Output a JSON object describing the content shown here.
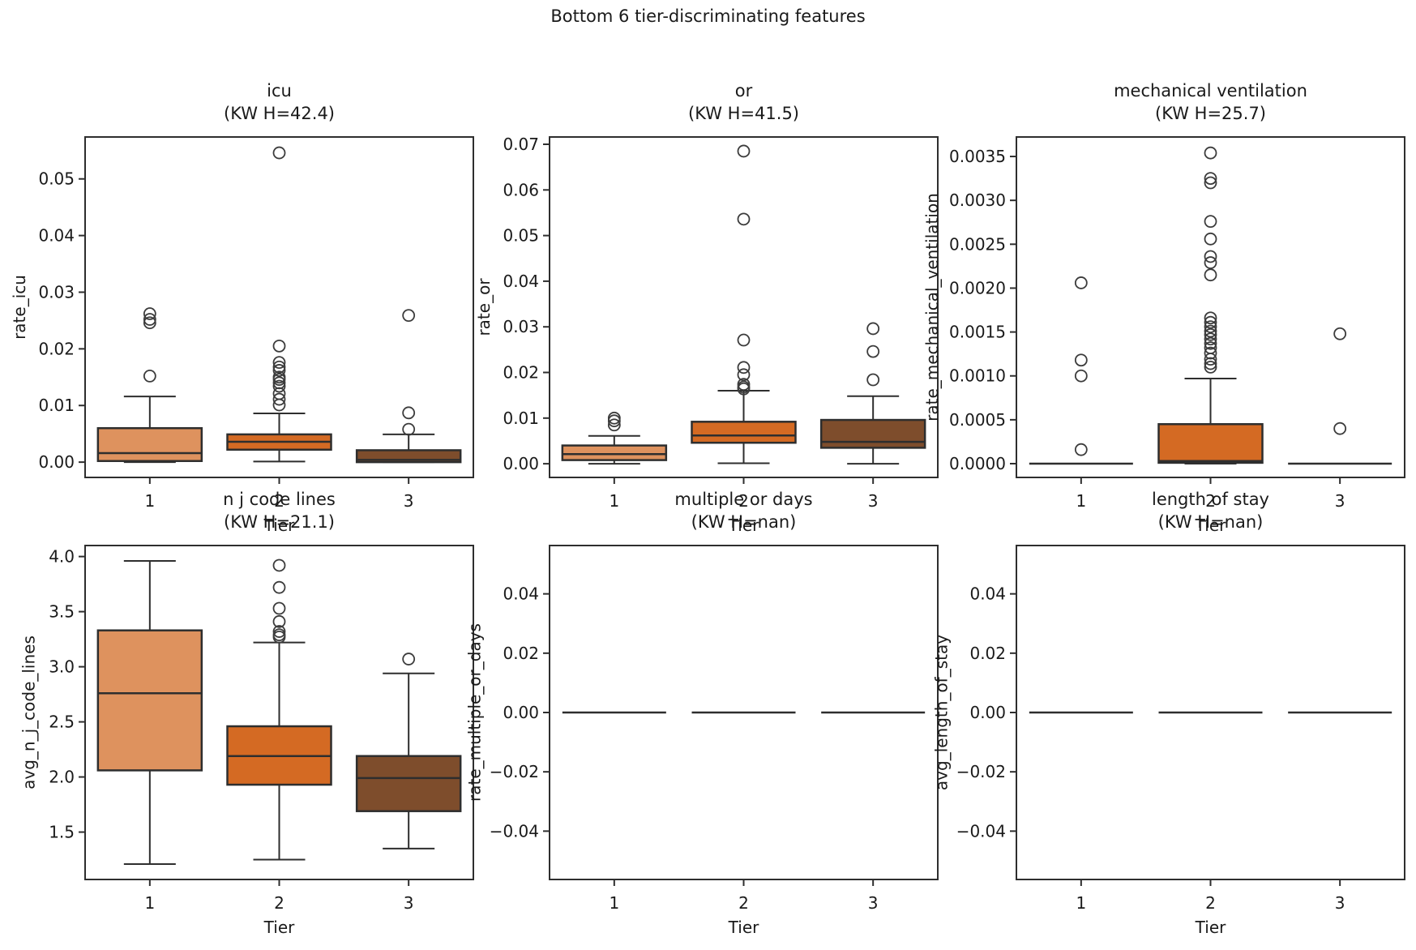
{
  "suptitle": "Bottom 6 tier-discriminating features",
  "colors": {
    "tier1_fill": "#de925e",
    "tier2_fill": "#d46a23",
    "tier3_fill": "#7e4d2c",
    "line": "#2e2e2e",
    "text": "#1a1a1a",
    "background": "#ffffff"
  },
  "chart_data": [
    {
      "type": "box",
      "title": "icu",
      "subtitle": "(KW H=42.4)",
      "ylabel": "rate_icu",
      "xlabel": "Tier",
      "categories": [
        "1",
        "2",
        "3"
      ],
      "ylim": [
        -0.0027,
        0.0574
      ],
      "yticks": [
        {
          "v": 0.0,
          "label": "0.00"
        },
        {
          "v": 0.01,
          "label": "0.01"
        },
        {
          "v": 0.02,
          "label": "0.02"
        },
        {
          "v": 0.03,
          "label": "0.03"
        },
        {
          "v": 0.04,
          "label": "0.04"
        },
        {
          "v": 0.05,
          "label": "0.05"
        }
      ],
      "boxes": [
        {
          "tier": "1",
          "whisker_low": 0.0,
          "q1": 0.0002,
          "median": 0.0016,
          "q3": 0.006,
          "whisker_high": 0.0116,
          "outliers": [
            0.0152,
            0.0246,
            0.0252,
            0.0262
          ]
        },
        {
          "tier": "2",
          "whisker_low": 0.0001,
          "q1": 0.0022,
          "median": 0.0036,
          "q3": 0.0049,
          "whisker_high": 0.0086,
          "outliers": [
            0.0546,
            0.0205,
            0.0176,
            0.0168,
            0.0162,
            0.015,
            0.0146,
            0.014,
            0.0134,
            0.0121,
            0.0111,
            0.0101
          ]
        },
        {
          "tier": "3",
          "whisker_low": 0.0,
          "q1": 0.0,
          "median": 0.0004,
          "q3": 0.0021,
          "whisker_high": 0.0049,
          "outliers": [
            0.0259,
            0.0087,
            0.0058
          ]
        }
      ]
    },
    {
      "type": "box",
      "title": "or",
      "subtitle": "(KW H=41.5)",
      "ylabel": "rate_or",
      "xlabel": "Tier",
      "categories": [
        "1",
        "2",
        "3"
      ],
      "ylim": [
        -0.003,
        0.0716
      ],
      "yticks": [
        {
          "v": 0.0,
          "label": "0.00"
        },
        {
          "v": 0.01,
          "label": "0.01"
        },
        {
          "v": 0.02,
          "label": "0.02"
        },
        {
          "v": 0.03,
          "label": "0.03"
        },
        {
          "v": 0.04,
          "label": "0.04"
        },
        {
          "v": 0.05,
          "label": "0.05"
        },
        {
          "v": 0.06,
          "label": "0.06"
        },
        {
          "v": 0.07,
          "label": "0.07"
        }
      ],
      "boxes": [
        {
          "tier": "1",
          "whisker_low": 0.0,
          "q1": 0.0008,
          "median": 0.0021,
          "q3": 0.004,
          "whisker_high": 0.0061,
          "outliers": [
            0.01,
            0.0094,
            0.0085
          ]
        },
        {
          "tier": "2",
          "whisker_low": 0.0001,
          "q1": 0.0046,
          "median": 0.0062,
          "q3": 0.0092,
          "whisker_high": 0.016,
          "outliers": [
            0.0685,
            0.0536,
            0.0271,
            0.0211,
            0.0195,
            0.0174,
            0.0168,
            0.0164
          ]
        },
        {
          "tier": "3",
          "whisker_low": 0.0,
          "q1": 0.0035,
          "median": 0.0048,
          "q3": 0.0096,
          "whisker_high": 0.0148,
          "outliers": [
            0.0296,
            0.0246,
            0.0184
          ]
        }
      ]
    },
    {
      "type": "box",
      "title": "mechanical ventilation",
      "subtitle": "(KW H=25.7)",
      "ylabel": "rate_mechanical_ventilation",
      "xlabel": "Tier",
      "categories": [
        "1",
        "2",
        "3"
      ],
      "ylim": [
        -0.000157,
        0.003722
      ],
      "yticks": [
        {
          "v": 0.0,
          "label": "0.0000"
        },
        {
          "v": 0.0005,
          "label": "0.0005"
        },
        {
          "v": 0.001,
          "label": "0.0010"
        },
        {
          "v": 0.0015,
          "label": "0.0015"
        },
        {
          "v": 0.002,
          "label": "0.0020"
        },
        {
          "v": 0.0025,
          "label": "0.0025"
        },
        {
          "v": 0.003,
          "label": "0.0030"
        },
        {
          "v": 0.0035,
          "label": "0.0035"
        }
      ],
      "boxes": [
        {
          "tier": "1",
          "whisker_low": 0.0,
          "q1": 0.0,
          "median": 0.0,
          "q3": 0.0,
          "whisker_high": 0.0,
          "outliers": [
            0.00206,
            0.00118,
            0.001,
            0.00016
          ]
        },
        {
          "tier": "2",
          "whisker_low": 0.0,
          "q1": 1e-05,
          "median": 3e-05,
          "q3": 0.00045,
          "whisker_high": 0.00097,
          "outliers": [
            0.00354,
            0.00325,
            0.0032,
            0.00276,
            0.00256,
            0.00236,
            0.00229,
            0.00215,
            0.00166,
            0.00161,
            0.00156,
            0.00151,
            0.00147,
            0.00142,
            0.00137,
            0.00132,
            0.00126,
            0.00119,
            0.00114,
            0.0011
          ]
        },
        {
          "tier": "3",
          "whisker_low": 0.0,
          "q1": 0.0,
          "median": 0.0,
          "q3": 0.0,
          "whisker_high": 0.0,
          "outliers": [
            0.00148,
            0.0004
          ]
        }
      ]
    },
    {
      "type": "box",
      "title": "n j code lines",
      "subtitle": "(KW H=21.1)",
      "ylabel": "avg_n_j_code_lines",
      "xlabel": "Tier",
      "categories": [
        "1",
        "2",
        "3"
      ],
      "ylim": [
        1.07,
        4.1
      ],
      "yticks": [
        {
          "v": 1.5,
          "label": "1.5"
        },
        {
          "v": 2.0,
          "label": "2.0"
        },
        {
          "v": 2.5,
          "label": "2.5"
        },
        {
          "v": 3.0,
          "label": "3.0"
        },
        {
          "v": 3.5,
          "label": "3.5"
        },
        {
          "v": 4.0,
          "label": "4.0"
        }
      ],
      "boxes": [
        {
          "tier": "1",
          "whisker_low": 1.21,
          "q1": 2.06,
          "median": 2.76,
          "q3": 3.33,
          "whisker_high": 3.96,
          "outliers": []
        },
        {
          "tier": "2",
          "whisker_low": 1.25,
          "q1": 1.93,
          "median": 2.19,
          "q3": 2.46,
          "whisker_high": 3.22,
          "outliers": [
            3.92,
            3.72,
            3.53,
            3.41,
            3.32,
            3.29,
            3.27
          ]
        },
        {
          "tier": "3",
          "whisker_low": 1.35,
          "q1": 1.69,
          "median": 1.99,
          "q3": 2.19,
          "whisker_high": 2.94,
          "outliers": [
            3.07
          ]
        }
      ]
    },
    {
      "type": "box",
      "title": "multiple or days",
      "subtitle": "(KW H=nan)",
      "ylabel": "rate_multiple_or_days",
      "xlabel": "Tier",
      "categories": [
        "1",
        "2",
        "3"
      ],
      "ylim": [
        -0.0563,
        0.0563
      ],
      "yticks": [
        {
          "v": -0.04,
          "label": "−0.04"
        },
        {
          "v": -0.02,
          "label": "−0.02"
        },
        {
          "v": 0.0,
          "label": "0.00"
        },
        {
          "v": 0.02,
          "label": "0.02"
        },
        {
          "v": 0.04,
          "label": "0.04"
        }
      ],
      "boxes": [
        {
          "tier": "1",
          "whisker_low": 0.0,
          "q1": 0.0,
          "median": 0.0,
          "q3": 0.0,
          "whisker_high": 0.0,
          "outliers": []
        },
        {
          "tier": "2",
          "whisker_low": 0.0,
          "q1": 0.0,
          "median": 0.0,
          "q3": 0.0,
          "whisker_high": 0.0,
          "outliers": []
        },
        {
          "tier": "3",
          "whisker_low": 0.0,
          "q1": 0.0,
          "median": 0.0,
          "q3": 0.0,
          "whisker_high": 0.0,
          "outliers": []
        }
      ]
    },
    {
      "type": "box",
      "title": "length of stay",
      "subtitle": "(KW H=nan)",
      "ylabel": "avg_length_of_stay",
      "xlabel": "Tier",
      "categories": [
        "1",
        "2",
        "3"
      ],
      "ylim": [
        -0.0563,
        0.0563
      ],
      "yticks": [
        {
          "v": -0.04,
          "label": "−0.04"
        },
        {
          "v": -0.02,
          "label": "−0.02"
        },
        {
          "v": 0.0,
          "label": "0.00"
        },
        {
          "v": 0.02,
          "label": "0.02"
        },
        {
          "v": 0.04,
          "label": "0.04"
        }
      ],
      "boxes": [
        {
          "tier": "1",
          "whisker_low": 0.0,
          "q1": 0.0,
          "median": 0.0,
          "q3": 0.0,
          "whisker_high": 0.0,
          "outliers": []
        },
        {
          "tier": "2",
          "whisker_low": 0.0,
          "q1": 0.0,
          "median": 0.0,
          "q3": 0.0,
          "whisker_high": 0.0,
          "outliers": []
        },
        {
          "tier": "3",
          "whisker_low": 0.0,
          "q1": 0.0,
          "median": 0.0,
          "q3": 0.0,
          "whisker_high": 0.0,
          "outliers": []
        }
      ]
    }
  ]
}
